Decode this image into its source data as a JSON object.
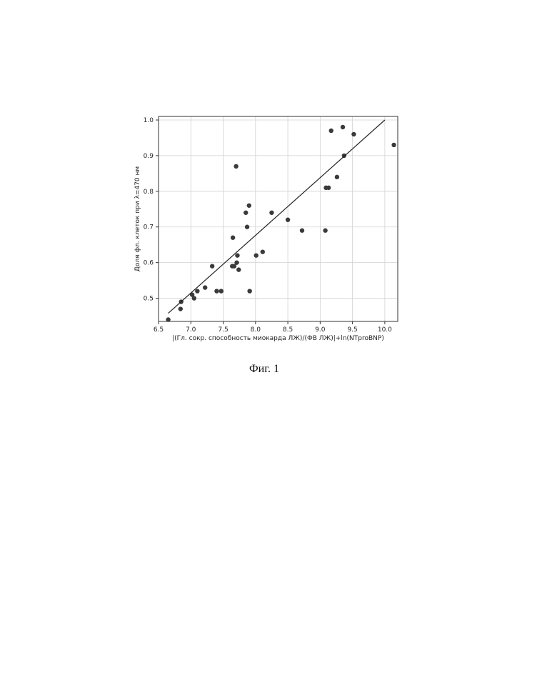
{
  "chart_data": {
    "type": "scatter",
    "xlabel": "|(Гл. сокр. способность миокарда ЛЖ)/(ФВ ЛЖ)|+ln(NTproBNP)",
    "ylabel": "Доля фл. клеток при λ=470 нм",
    "xlim": [
      6.5,
      10.2
    ],
    "ylim": [
      0.435,
      1.01
    ],
    "x_ticks": [
      "6.5",
      "7.0",
      "7.5",
      "8.0",
      "8.5",
      "9.0",
      "9.5",
      "10.0"
    ],
    "y_ticks": [
      "0.5",
      "0.6",
      "0.7",
      "0.8",
      "0.9",
      "1.0"
    ],
    "grid": true,
    "points": [
      {
        "x": 6.65,
        "y": 0.44
      },
      {
        "x": 6.84,
        "y": 0.47
      },
      {
        "x": 6.85,
        "y": 0.49
      },
      {
        "x": 7.02,
        "y": 0.51
      },
      {
        "x": 7.05,
        "y": 0.5
      },
      {
        "x": 7.1,
        "y": 0.52
      },
      {
        "x": 7.22,
        "y": 0.53
      },
      {
        "x": 7.33,
        "y": 0.59
      },
      {
        "x": 7.4,
        "y": 0.52
      },
      {
        "x": 7.47,
        "y": 0.52
      },
      {
        "x": 7.64,
        "y": 0.59
      },
      {
        "x": 7.65,
        "y": 0.67
      },
      {
        "x": 7.67,
        "y": 0.59
      },
      {
        "x": 7.7,
        "y": 0.87
      },
      {
        "x": 7.71,
        "y": 0.6
      },
      {
        "x": 7.72,
        "y": 0.62
      },
      {
        "x": 7.74,
        "y": 0.58
      },
      {
        "x": 7.85,
        "y": 0.74
      },
      {
        "x": 7.87,
        "y": 0.7
      },
      {
        "x": 7.9,
        "y": 0.76
      },
      {
        "x": 7.91,
        "y": 0.52
      },
      {
        "x": 8.01,
        "y": 0.62
      },
      {
        "x": 8.11,
        "y": 0.63
      },
      {
        "x": 8.25,
        "y": 0.74
      },
      {
        "x": 8.5,
        "y": 0.72
      },
      {
        "x": 8.72,
        "y": 0.69
      },
      {
        "x": 9.08,
        "y": 0.69
      },
      {
        "x": 9.09,
        "y": 0.81
      },
      {
        "x": 9.13,
        "y": 0.81
      },
      {
        "x": 9.17,
        "y": 0.97
      },
      {
        "x": 9.26,
        "y": 0.84
      },
      {
        "x": 9.35,
        "y": 0.98
      },
      {
        "x": 9.37,
        "y": 0.9
      },
      {
        "x": 9.52,
        "y": 0.96
      },
      {
        "x": 10.14,
        "y": 0.93
      }
    ],
    "fit_line": {
      "x": [
        6.65,
        10.0
      ],
      "y": [
        0.458,
        1.0
      ]
    }
  },
  "caption": "Фиг. 1",
  "colors": {
    "point": "#3a3a3a",
    "line": "#222222",
    "grid": "#d2d2d2",
    "frame": "#333333"
  }
}
